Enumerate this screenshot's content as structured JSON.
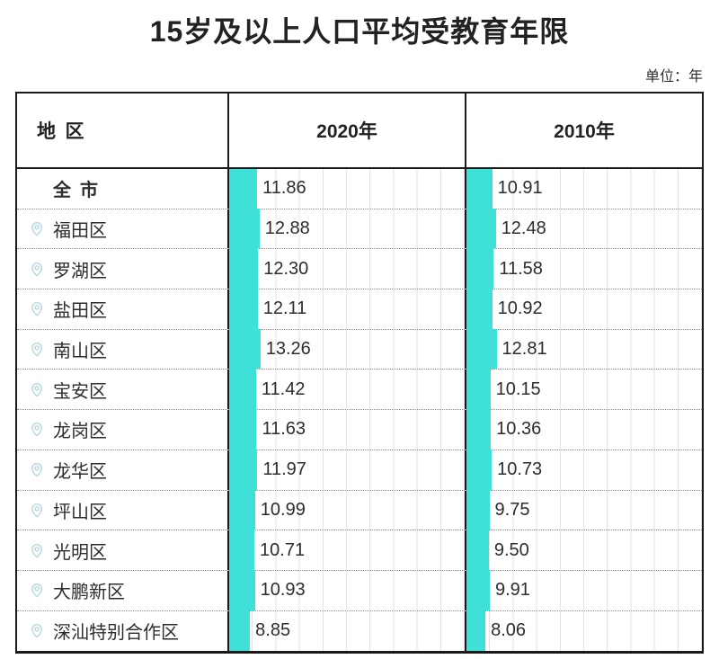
{
  "title": "15岁及以上人口平均受教育年限",
  "unit_label": "单位：年",
  "headers": {
    "region": "地 区",
    "col2020": "2020年",
    "col2010": "2010年"
  },
  "rows": [
    {
      "name": "全 市",
      "v2020": "11.86",
      "v2010": "10.91"
    },
    {
      "name": "福田区",
      "v2020": "12.88",
      "v2010": "12.48"
    },
    {
      "name": "罗湖区",
      "v2020": "12.30",
      "v2010": "11.58"
    },
    {
      "name": "盐田区",
      "v2020": "12.11",
      "v2010": "10.92"
    },
    {
      "name": "南山区",
      "v2020": "13.26",
      "v2010": "12.81"
    },
    {
      "name": "宝安区",
      "v2020": "11.42",
      "v2010": "10.15"
    },
    {
      "name": "龙岗区",
      "v2020": "11.63",
      "v2010": "10.36"
    },
    {
      "name": "龙华区",
      "v2020": "11.97",
      "v2010": "10.73"
    },
    {
      "name": "坪山区",
      "v2020": "10.99",
      "v2010": "9.75"
    },
    {
      "name": "光明区",
      "v2020": "10.71",
      "v2010": "9.50"
    },
    {
      "name": "大鹏新区",
      "v2020": "10.93",
      "v2010": "9.91"
    },
    {
      "name": "深汕特别合作区",
      "v2020": "8.85",
      "v2010": "8.06"
    }
  ],
  "colors": {
    "bar": "#3FE0D8",
    "pin_icon": "#B6D8E2",
    "border": "#1A1A1A",
    "grid": "#E3E3E3"
  },
  "chart_data": {
    "type": "bar",
    "orientation": "horizontal",
    "title": "15岁及以上人口平均受教育年限",
    "unit": "年",
    "categories": [
      "全市",
      "福田区",
      "罗湖区",
      "盐田区",
      "南山区",
      "宝安区",
      "龙岗区",
      "龙华区",
      "坪山区",
      "光明区",
      "大鹏新区",
      "深汕特别合作区"
    ],
    "series": [
      {
        "name": "2020年",
        "values": [
          11.86,
          12.88,
          12.3,
          12.11,
          13.26,
          11.42,
          11.63,
          11.97,
          10.99,
          10.71,
          10.93,
          8.85
        ]
      },
      {
        "name": "2010年",
        "values": [
          10.91,
          12.48,
          11.58,
          10.92,
          12.81,
          10.15,
          10.36,
          10.73,
          9.75,
          9.5,
          9.91,
          8.06
        ]
      }
    ],
    "xlim": [
      0,
      100
    ],
    "gridlines": "vertical, one every 10 units, light gray",
    "legend_position": "table column headers",
    "bar_color": "#3FE0D8"
  }
}
